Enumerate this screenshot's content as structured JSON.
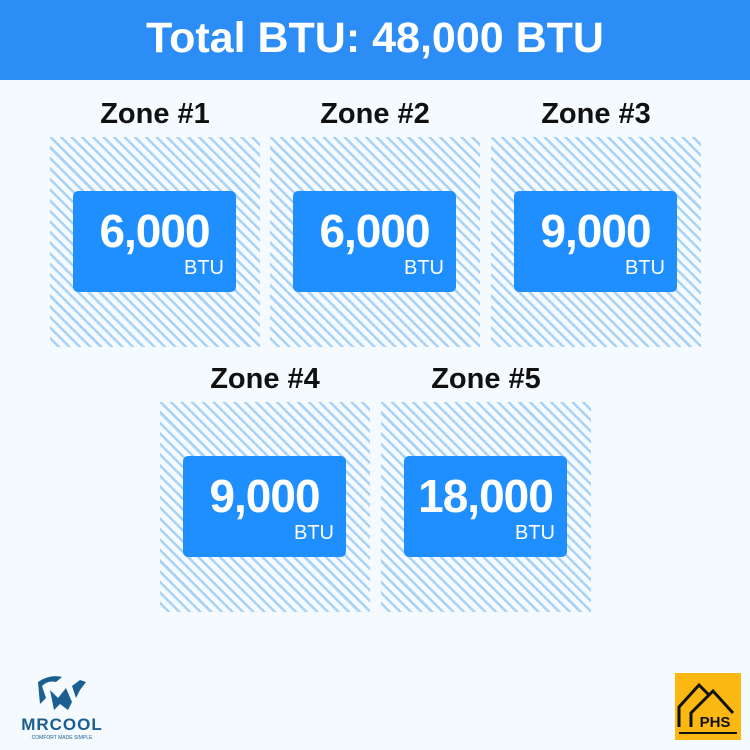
{
  "header": {
    "title": "Total BTU: 48,000 BTU"
  },
  "zones": [
    {
      "label": "Zone #1",
      "value": "6,000",
      "unit": "BTU"
    },
    {
      "label": "Zone #2",
      "value": "6,000",
      "unit": "BTU"
    },
    {
      "label": "Zone #3",
      "value": "9,000",
      "unit": "BTU"
    },
    {
      "label": "Zone #4",
      "value": "9,000",
      "unit": "BTU"
    },
    {
      "label": "Zone #5",
      "value": "18,000",
      "unit": "BTU"
    }
  ],
  "logos": {
    "left": "MRCOOL",
    "left_tagline": "COMFORT MADE SIMPLE",
    "right": "PHS"
  },
  "colors": {
    "accent": "#1f8fff",
    "header": "#2b8df5",
    "phs": "#fbb812",
    "mrcool": "#1b5e92"
  }
}
